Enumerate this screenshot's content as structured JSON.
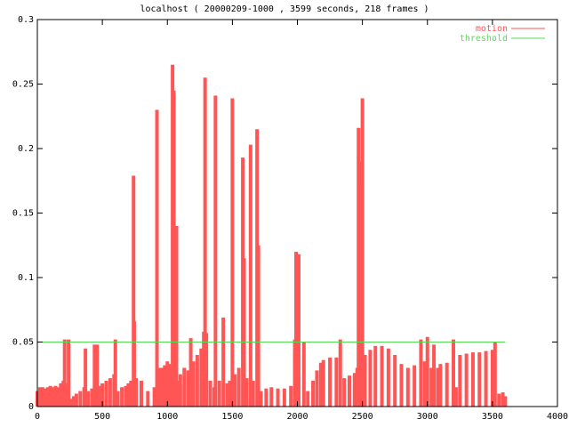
{
  "chart_data": {
    "type": "impulses",
    "title": "localhost ( 20000209-1000 , 3599 seconds, 218 frames )",
    "series": [
      {
        "name": "motion",
        "color": "#ff5555",
        "style": "impulses",
        "x": [
          0,
          20,
          40,
          60,
          80,
          100,
          120,
          140,
          160,
          180,
          200,
          210,
          220,
          240,
          260,
          280,
          300,
          330,
          360,
          370,
          390,
          420,
          440,
          450,
          460,
          480,
          500,
          530,
          560,
          590,
          600,
          620,
          650,
          680,
          700,
          720,
          740,
          745,
          760,
          800,
          850,
          900,
          920,
          940,
          960,
          980,
          1000,
          1020,
          1040,
          1050,
          1060,
          1070,
          1080,
          1100,
          1130,
          1160,
          1180,
          1200,
          1230,
          1260,
          1280,
          1290,
          1300,
          1330,
          1360,
          1370,
          1400,
          1430,
          1460,
          1480,
          1500,
          1520,
          1550,
          1580,
          1590,
          1610,
          1640,
          1660,
          1690,
          1700,
          1720,
          1760,
          1800,
          1850,
          1900,
          1950,
          1980,
          1990,
          2000,
          2010,
          2050,
          2080,
          2120,
          2150,
          2180,
          2200,
          2250,
          2300,
          2330,
          2360,
          2400,
          2440,
          2460,
          2470,
          2480,
          2490,
          2500,
          2520,
          2560,
          2600,
          2650,
          2700,
          2750,
          2800,
          2850,
          2900,
          2950,
          2980,
          3000,
          3030,
          3050,
          3080,
          3100,
          3150,
          3200,
          3220,
          3250,
          3300,
          3350,
          3400,
          3450,
          3500,
          3520,
          3550,
          3580,
          3599
        ],
        "values": [
          0.012,
          0.015,
          0.015,
          0.014,
          0.015,
          0.016,
          0.015,
          0.016,
          0.015,
          0.018,
          0.02,
          0.052,
          0.018,
          0.052,
          0.006,
          0.008,
          0.01,
          0.012,
          0.015,
          0.045,
          0.012,
          0.014,
          0.048,
          0.02,
          0.048,
          0.016,
          0.018,
          0.02,
          0.022,
          0.025,
          0.052,
          0.012,
          0.015,
          0.016,
          0.018,
          0.02,
          0.179,
          0.066,
          0.022,
          0.02,
          0.012,
          0.015,
          0.23,
          0.03,
          0.03,
          0.032,
          0.035,
          0.033,
          0.265,
          0.245,
          0.005,
          0.14,
          0.02,
          0.025,
          0.03,
          0.028,
          0.053,
          0.035,
          0.04,
          0.045,
          0.058,
          0.255,
          0.057,
          0.02,
          0.015,
          0.241,
          0.02,
          0.069,
          0.018,
          0.02,
          0.239,
          0.025,
          0.03,
          0.193,
          0.115,
          0.022,
          0.203,
          0.02,
          0.215,
          0.125,
          0.012,
          0.014,
          0.015,
          0.014,
          0.014,
          0.016,
          0.052,
          0.12,
          0.045,
          0.118,
          0.05,
          0.012,
          0.02,
          0.028,
          0.034,
          0.036,
          0.038,
          0.038,
          0.052,
          0.022,
          0.024,
          0.026,
          0.03,
          0.216,
          0.19,
          0.174,
          0.239,
          0.04,
          0.044,
          0.047,
          0.047,
          0.045,
          0.04,
          0.033,
          0.03,
          0.032,
          0.052,
          0.035,
          0.054,
          0.03,
          0.048,
          0.03,
          0.033,
          0.034,
          0.052,
          0.015,
          0.04,
          0.041,
          0.042,
          0.042,
          0.043,
          0.044,
          0.05,
          0.01,
          0.011,
          0.008
        ]
      },
      {
        "name": "threshold",
        "color": "#55dd55",
        "style": "line",
        "x": [
          0,
          3599
        ],
        "values": [
          0.05,
          0.05
        ]
      }
    ],
    "xlim": [
      0,
      4000
    ],
    "xticks": [
      0,
      500,
      1000,
      1500,
      2000,
      2500,
      3000,
      3500,
      4000
    ],
    "ylim": [
      0,
      0.3
    ],
    "yticks": [
      0,
      0.05,
      0.1,
      0.15,
      0.2,
      0.25,
      0.3
    ],
    "legend": "top-right"
  }
}
